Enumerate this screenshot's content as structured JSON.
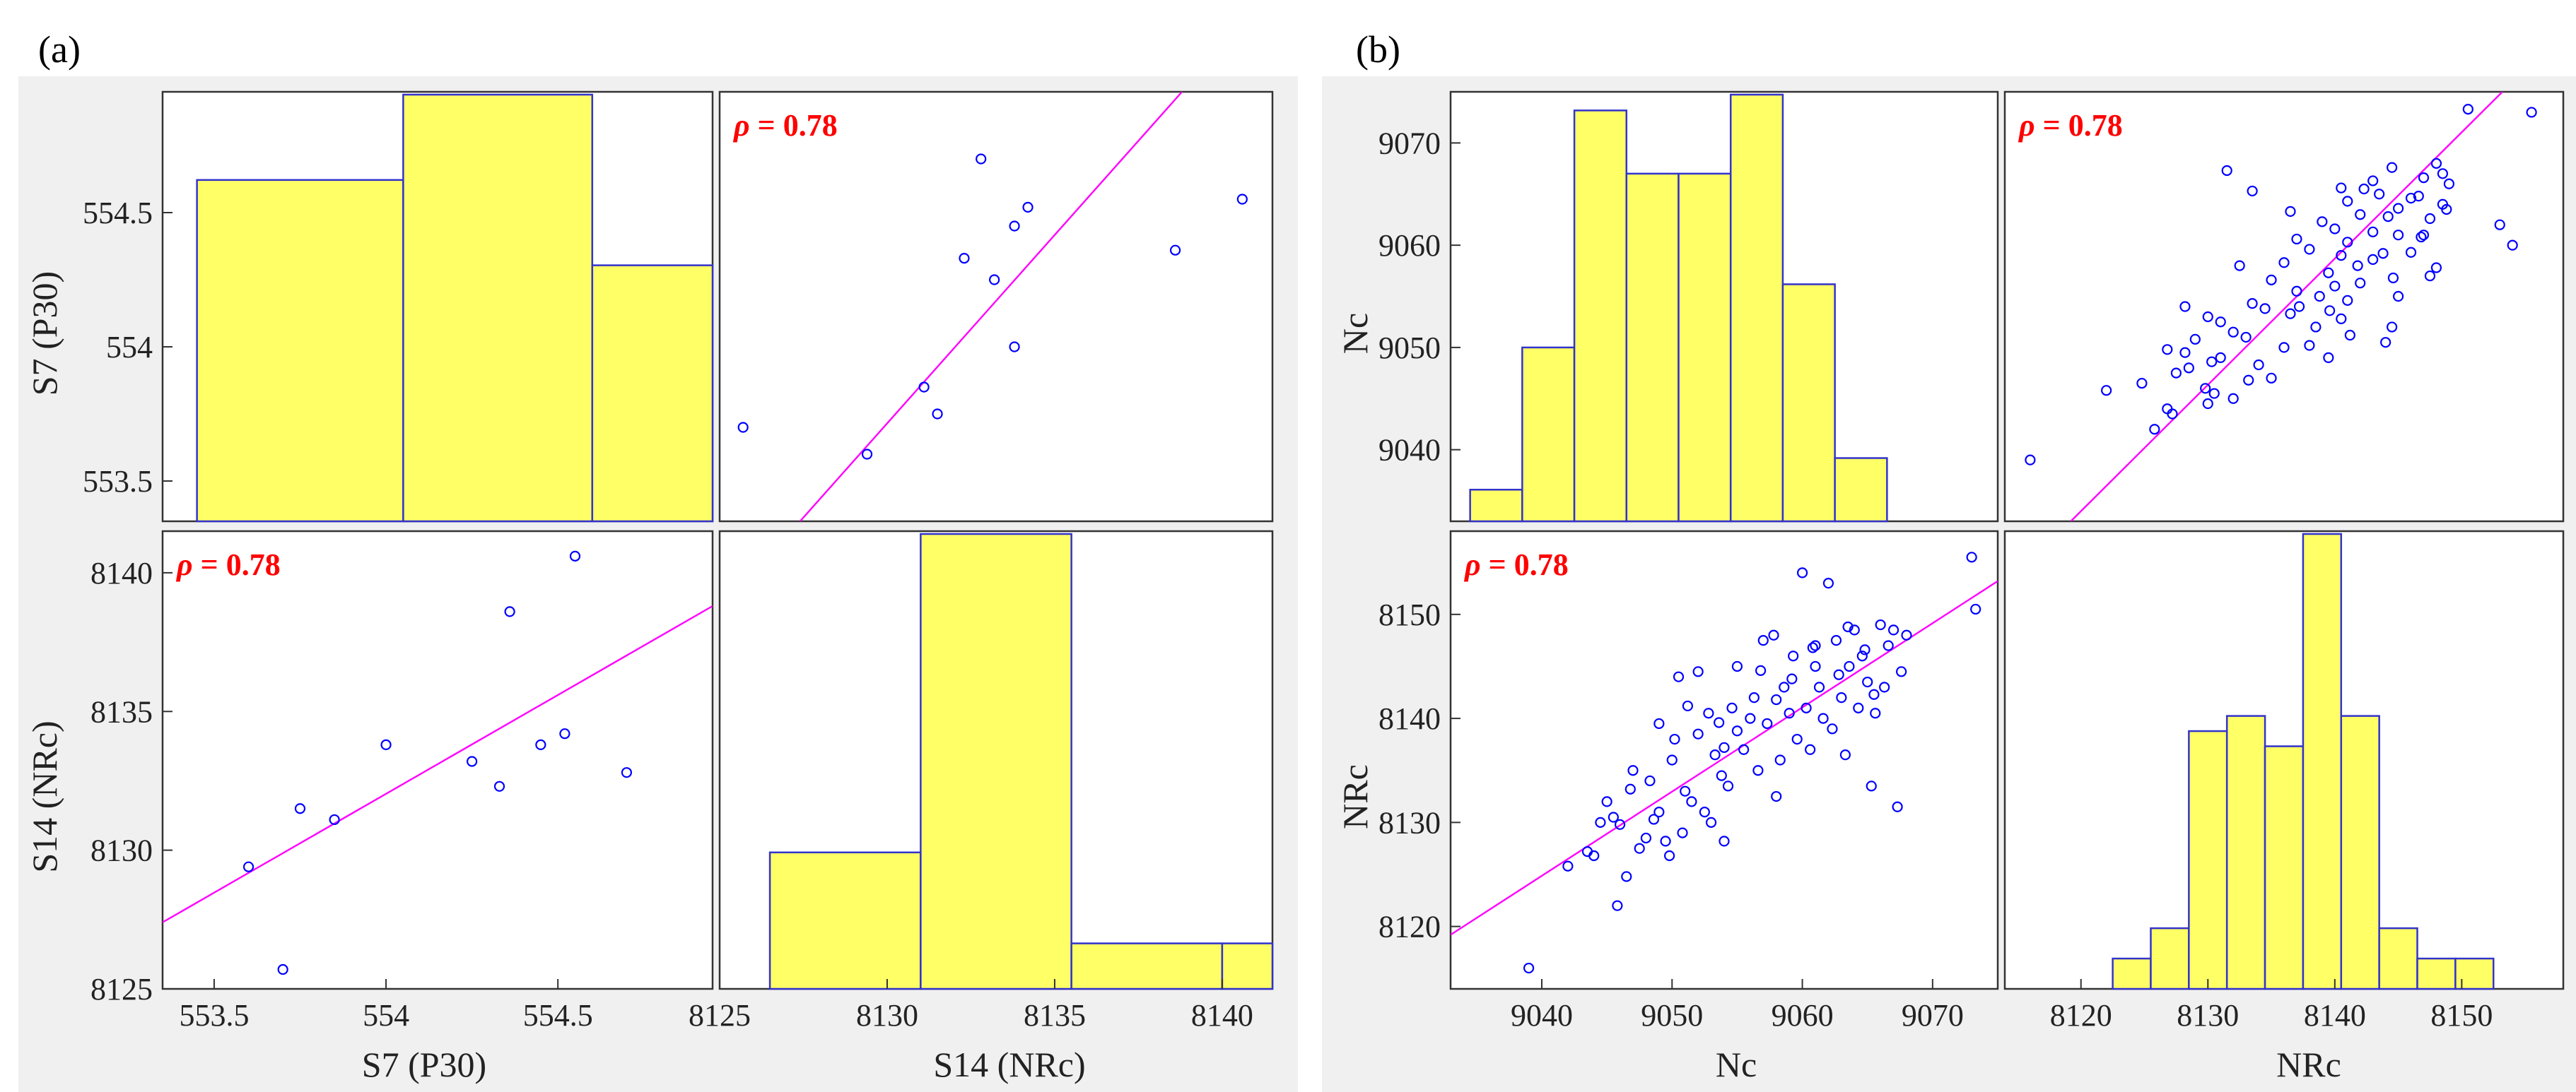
{
  "panels": [
    {
      "label": "(a)",
      "row_vars": [
        "S7 (P30)",
        "S14 (NRc)"
      ],
      "col_vars": [
        "S7 (P30)",
        "S14 (NRc)"
      ],
      "rho_text": "= 0.78"
    },
    {
      "label": "(b)",
      "row_vars": [
        "Nc",
        "NRc"
      ],
      "col_vars": [
        "Nc",
        "NRc"
      ],
      "rho_text": "= 0.78"
    }
  ],
  "chart_data": [
    {
      "type": "scatter-matrix",
      "panel": "(a)",
      "variables": [
        "S7 (P30)",
        "S14 (NRc)"
      ],
      "correlation": 0.78,
      "axes": {
        "S7 (P30)": {
          "range": [
            553.35,
            554.95
          ],
          "ticks": [
            553.5,
            554,
            554.5
          ]
        },
        "S14 (NRc)": {
          "range": [
            8125,
            8141.5
          ],
          "ticks": [
            8125,
            8130,
            8135,
            8140
          ]
        }
      },
      "histograms": {
        "S7 (P30)": {
          "edges": [
            553.45,
            554.05,
            554.6,
            554.95
          ],
          "counts": [
            4,
            5,
            3
          ],
          "count_max": 5
        },
        "S14 (NRc)": {
          "edges": [
            8126.5,
            8131,
            8135.5,
            8140,
            8141.5
          ],
          "counts": [
            3,
            10,
            1,
            1
          ],
          "count_max": 10
        }
      },
      "scatter": {
        "x_var": "S7 (P30)",
        "y_var": "S14 (NRc)",
        "points": [
          [
            553.6,
            8129.4
          ],
          [
            553.7,
            8125.7
          ],
          [
            553.75,
            8131.5
          ],
          [
            553.85,
            8131.1
          ],
          [
            554.0,
            8133.8
          ],
          [
            554.25,
            8133.2
          ],
          [
            554.33,
            8132.3
          ],
          [
            554.36,
            8138.6
          ],
          [
            554.45,
            8133.8
          ],
          [
            554.52,
            8134.2
          ],
          [
            554.55,
            8140.6
          ],
          [
            554.7,
            8132.8
          ]
        ],
        "fit": {
          "x": [
            553.35,
            554.95
          ],
          "y": [
            8127.4,
            8138.8
          ]
        }
      }
    },
    {
      "type": "scatter-matrix",
      "panel": "(b)",
      "variables": [
        "Nc",
        "NRc"
      ],
      "correlation": 0.78,
      "axes": {
        "Nc": {
          "range": [
            9033,
            9075
          ],
          "ticks": [
            9040,
            9050,
            9060,
            9070
          ]
        },
        "NRc": {
          "range": [
            8114,
            8158
          ],
          "ticks": [
            8120,
            8130,
            8140,
            8150
          ]
        }
      },
      "histograms": {
        "Nc": {
          "edges": [
            9034.5,
            9038.5,
            9042.5,
            9046.5,
            9050.5,
            9054.5,
            9058.5,
            9062.5,
            9066.5
          ],
          "counts": [
            2,
            11,
            26,
            22,
            22,
            27,
            15,
            4
          ],
          "count_max": 27
        },
        "NRc": {
          "edges": [
            8122.5,
            8125.5,
            8128.5,
            8131.5,
            8134.5,
            8137.5,
            8140.5,
            8143.5,
            8146.5,
            8149.5,
            8152.5
          ],
          "counts": [
            2,
            4,
            17,
            18,
            16,
            30,
            18,
            4,
            2,
            2
          ],
          "count_max": 30
        }
      },
      "scatter": {
        "x_var": "Nc",
        "y_var": "NRc",
        "points": [
          [
            9039,
            8116
          ],
          [
            9042,
            8125.8
          ],
          [
            9043.5,
            8127.2
          ],
          [
            9044,
            8126.8
          ],
          [
            9044.5,
            8130
          ],
          [
            9045,
            8132
          ],
          [
            9045.5,
            8130.5
          ],
          [
            9045.8,
            8122
          ],
          [
            9046,
            8129.8
          ],
          [
            9046.5,
            8124.8
          ],
          [
            9047,
            8135
          ],
          [
            9047.5,
            8127.5
          ],
          [
            9048,
            8128.5
          ],
          [
            9048.3,
            8134
          ],
          [
            9049,
            8131
          ],
          [
            9049.5,
            8128.2
          ],
          [
            9049.8,
            8126.8
          ],
          [
            9050,
            8136
          ],
          [
            9050.2,
            8138
          ],
          [
            9050.5,
            8144
          ],
          [
            9050.8,
            8129
          ],
          [
            9051,
            8133
          ],
          [
            9051.5,
            8132
          ],
          [
            9052,
            8138.5
          ],
          [
            9052.5,
            8131
          ],
          [
            9052.8,
            8140.5
          ],
          [
            9053,
            8130
          ],
          [
            9053.3,
            8136.5
          ],
          [
            9053.8,
            8134.5
          ],
          [
            9054,
            8128.2
          ],
          [
            9054.3,
            8133.5
          ],
          [
            9054.6,
            8141
          ],
          [
            9055,
            8145
          ],
          [
            9055.5,
            8137
          ],
          [
            9056,
            8140
          ],
          [
            9056.3,
            8142
          ],
          [
            9056.6,
            8135
          ],
          [
            9057,
            8147.5
          ],
          [
            9057.3,
            8139.5
          ],
          [
            9057.8,
            8148
          ],
          [
            9058,
            8141.8
          ],
          [
            9058.3,
            8136
          ],
          [
            9058.6,
            8143
          ],
          [
            9059,
            8140.5
          ],
          [
            9059.3,
            8146
          ],
          [
            9059.6,
            8138
          ],
          [
            9060,
            8154
          ],
          [
            9060.3,
            8141
          ],
          [
            9060.6,
            8137
          ],
          [
            9061,
            8145
          ],
          [
            9061.3,
            8143
          ],
          [
            9061.6,
            8140
          ],
          [
            9062,
            8153
          ],
          [
            9062.3,
            8139
          ],
          [
            9062.6,
            8147.5
          ],
          [
            9063,
            8142
          ],
          [
            9063.3,
            8136.5
          ],
          [
            9063.6,
            8145
          ],
          [
            9064,
            8148.5
          ],
          [
            9064.3,
            8141
          ],
          [
            9064.6,
            8146
          ],
          [
            9065,
            8143.5
          ],
          [
            9065.3,
            8133.5
          ],
          [
            9065.6,
            8140.5
          ],
          [
            9066,
            8149
          ],
          [
            9066.3,
            8143
          ],
          [
            9066.6,
            8147
          ],
          [
            9067,
            8148.5
          ],
          [
            9067.3,
            8131.5
          ],
          [
            9067.6,
            8144.5
          ],
          [
            9068,
            8148
          ],
          [
            9073,
            8155.5
          ],
          [
            9073.3,
            8150.5
          ],
          [
            9049,
            8139.5
          ],
          [
            9052,
            8144.5
          ],
          [
            9055,
            8138.8
          ],
          [
            9058,
            8132.5
          ],
          [
            9061,
            8147
          ],
          [
            9063.5,
            8148.8
          ],
          [
            9046.8,
            8133.2
          ],
          [
            9051.2,
            8141.2
          ],
          [
            9054,
            8137.2
          ],
          [
            9059.2,
            8143.8
          ],
          [
            9062.8,
            8144.2
          ],
          [
            9065.5,
            8142.3
          ],
          [
            9048.6,
            8130.3
          ],
          [
            9053.6,
            8139.6
          ],
          [
            9056.8,
            8144.6
          ],
          [
            9060.8,
            8146.8
          ],
          [
            9064.8,
            8146.6
          ]
        ],
        "fit": {
          "x": [
            9033,
            9075
          ],
          "y": [
            8119.2,
            8153.2
          ]
        }
      }
    }
  ]
}
